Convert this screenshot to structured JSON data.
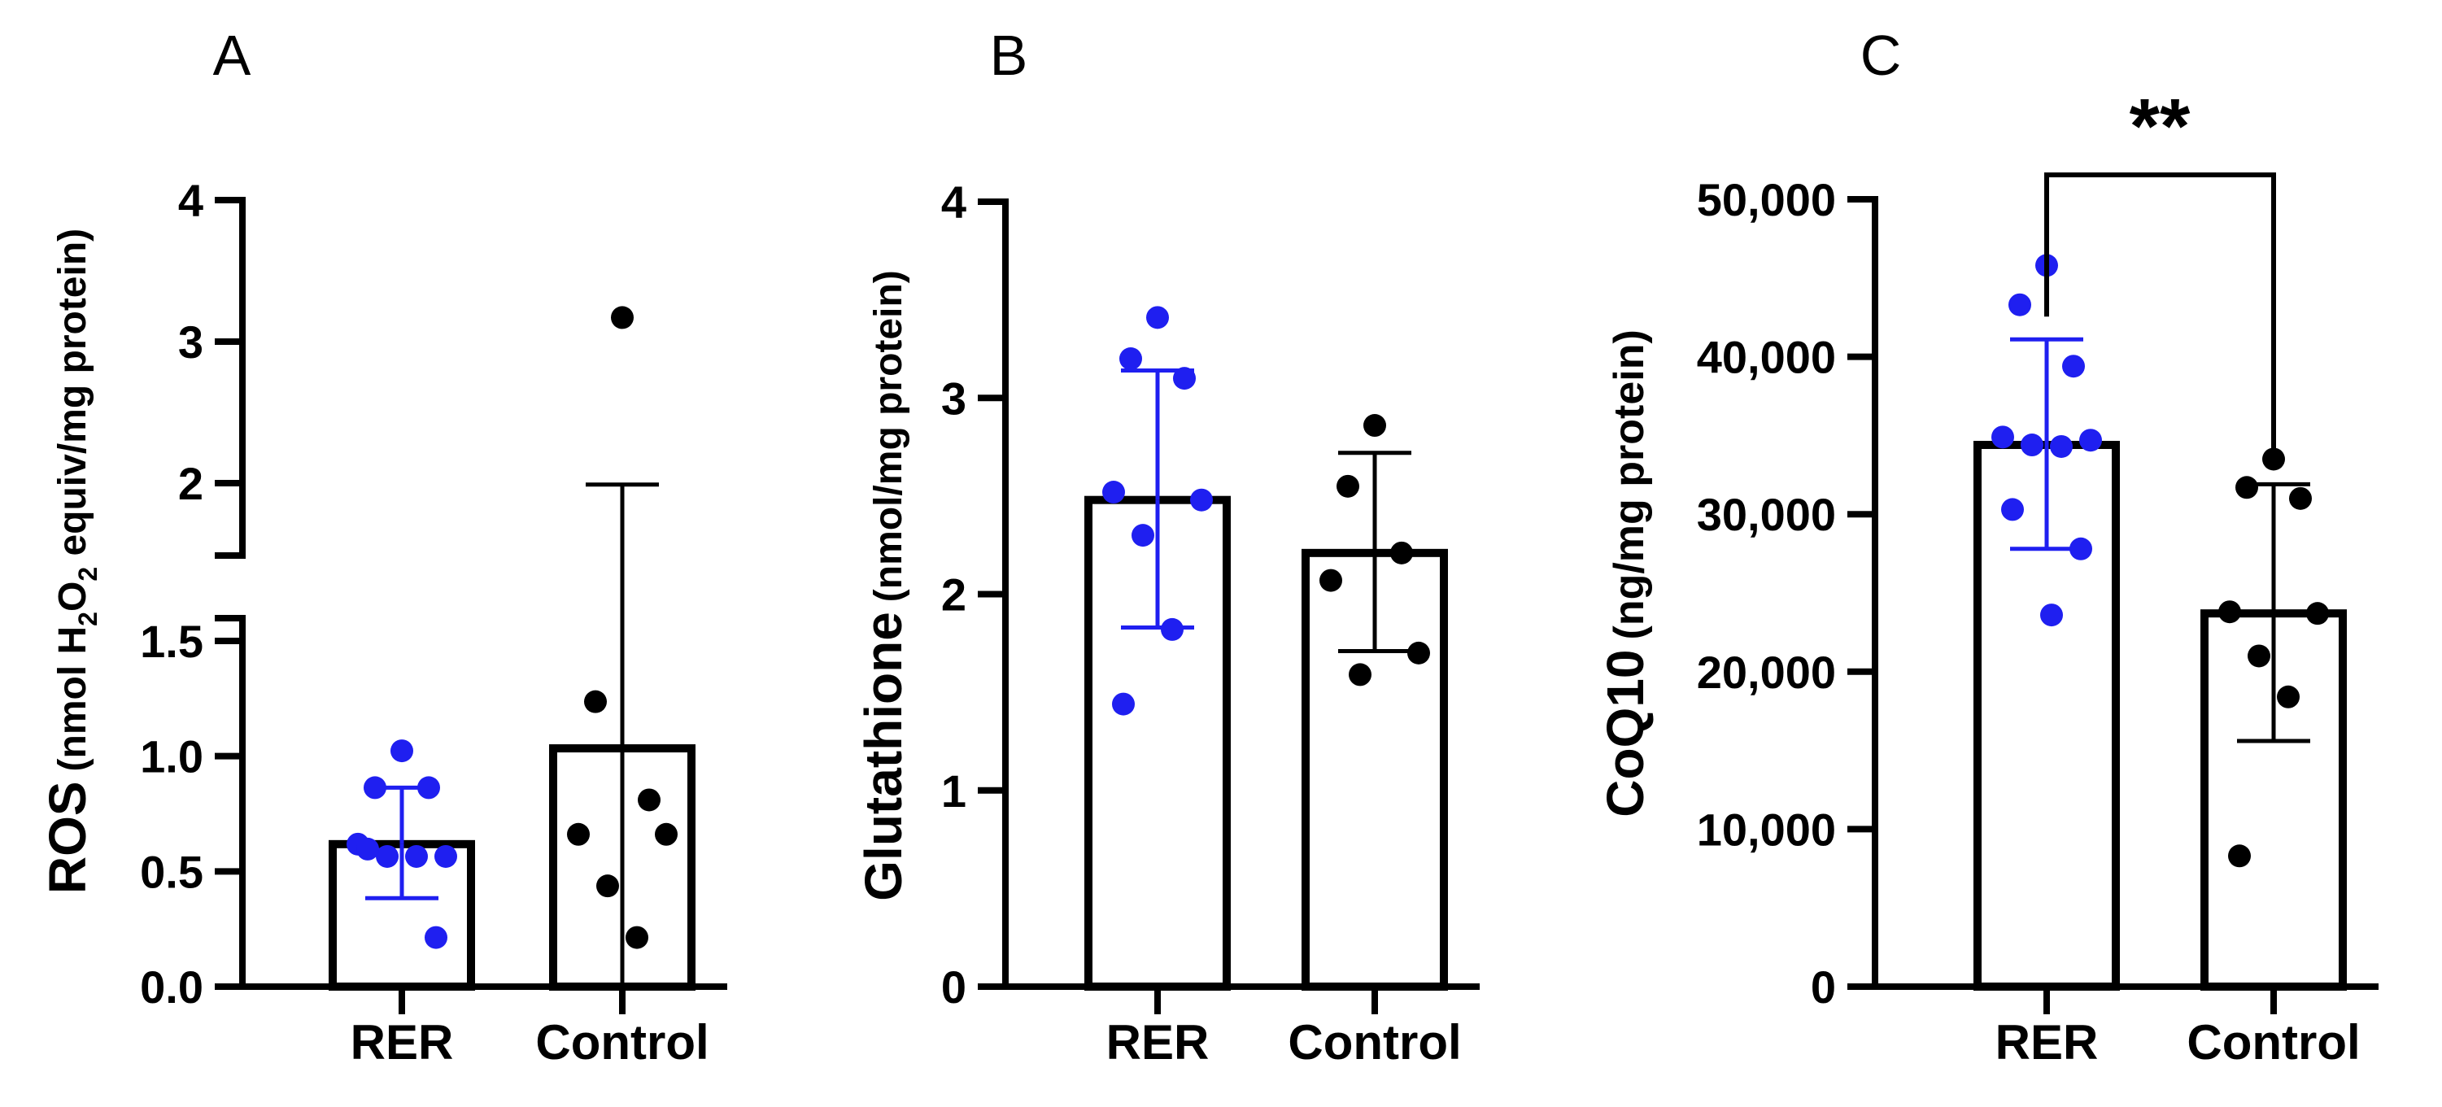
{
  "colors": {
    "rer": "#1f1ff0",
    "control": "#000000",
    "axis": "#000000"
  },
  "chart_data": [
    {
      "panel": "A",
      "type": "bar",
      "title": "",
      "ylabel_main": "ROS",
      "ylabel_sub": "(nmol H2O2 equiv/mg protein)",
      "ylabel_sub_parts": [
        "(nmol H",
        "2",
        "O",
        "2",
        " equiv/mg protein)"
      ],
      "categories": [
        "RER",
        "Control"
      ],
      "broken_axis": true,
      "segments": [
        {
          "range": [
            0,
            1.5
          ],
          "ticks": [
            0,
            0.5,
            1.0,
            1.5
          ],
          "tick_labels": [
            "0.0",
            "0.5",
            "1.0",
            "1.5"
          ]
        },
        {
          "range": [
            1.5,
            4
          ],
          "ticks": [
            2,
            3,
            4
          ],
          "tick_labels": [
            "2",
            "3",
            "4"
          ]
        }
      ],
      "series": [
        {
          "name": "RER",
          "mean": 0.58,
          "sd_low": 0.36,
          "sd_high": 0.81,
          "points": [
            0.96,
            0.81,
            0.81,
            0.58,
            0.53,
            0.53,
            0.53,
            0.56,
            0.2
          ]
        },
        {
          "name": "Control",
          "mean": 0.97,
          "sd_low": null,
          "sd_high": 1.99,
          "points": [
            3.17,
            1.16,
            0.76,
            0.62,
            0.62,
            0.41,
            0.2
          ]
        }
      ]
    },
    {
      "panel": "B",
      "type": "bar",
      "title": "",
      "ylabel_main": "Glutathione",
      "ylabel_sub": "(nmol/mg protein)",
      "categories": [
        "RER",
        "Control"
      ],
      "ylim": [
        0,
        4
      ],
      "ticks": [
        0,
        1,
        2,
        3,
        4
      ],
      "tick_labels": [
        "0",
        "1",
        "2",
        "3",
        "4"
      ],
      "series": [
        {
          "name": "RER",
          "mean": 2.48,
          "sd_low": 1.83,
          "sd_high": 3.14,
          "points": [
            3.41,
            3.2,
            3.1,
            2.52,
            2.48,
            2.3,
            1.82,
            1.44
          ]
        },
        {
          "name": "Control",
          "mean": 2.21,
          "sd_low": 1.71,
          "sd_high": 2.72,
          "points": [
            2.86,
            2.55,
            2.21,
            2.07,
            1.7,
            1.59
          ]
        }
      ]
    },
    {
      "panel": "C",
      "type": "bar",
      "title": "",
      "ylabel_main": "CoQ10",
      "ylabel_sub": "(ng/mg protein)",
      "categories": [
        "RER",
        "Control"
      ],
      "ylim": [
        0,
        50000
      ],
      "ticks": [
        0,
        10000,
        20000,
        30000,
        40000,
        50000
      ],
      "tick_labels": [
        "0",
        "10,000",
        "20,000",
        "30,000",
        "40,000",
        "50,000"
      ],
      "significance": "**",
      "series": [
        {
          "name": "RER",
          "mean": 34400,
          "sd_low": 27800,
          "sd_high": 41100,
          "points": [
            45800,
            43300,
            39400,
            34900,
            34700,
            34400,
            34300,
            30300,
            27800,
            23600
          ]
        },
        {
          "name": "Control",
          "mean": 23700,
          "sd_low": 15600,
          "sd_high": 31900,
          "points": [
            33500,
            31700,
            31000,
            23800,
            23700,
            21000,
            18400,
            8300
          ]
        }
      ]
    }
  ]
}
